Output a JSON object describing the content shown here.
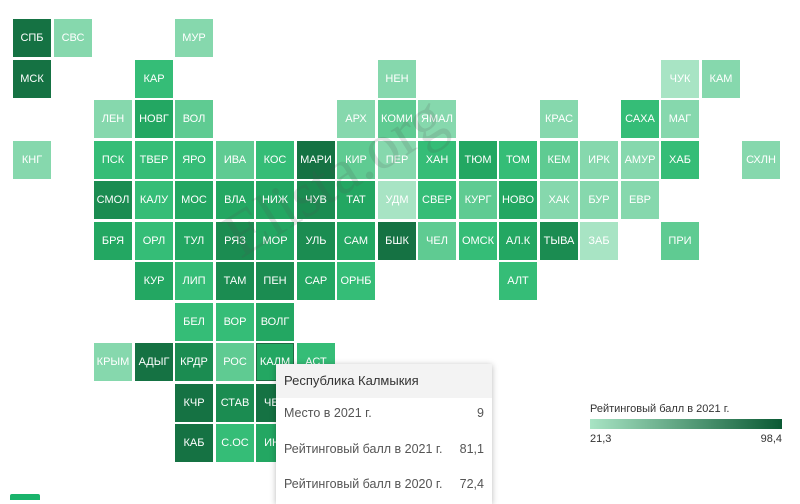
{
  "chart_data": {
    "type": "heatmap",
    "title": "",
    "colors": {
      "c1": "#a8e4c4",
      "c2": "#86d8ad",
      "c3": "#5fcb92",
      "c4": "#35bd77",
      "c5": "#23a762",
      "c6": "#1b8c51",
      "c7": "#157243",
      "c8": "#0e5a34"
    },
    "tiles": [
      {
        "label": "СПБ",
        "col": 0,
        "row": 0,
        "c": "c7"
      },
      {
        "label": "СВС",
        "col": 1,
        "row": 0,
        "c": "c2"
      },
      {
        "label": "МУР",
        "col": 4,
        "row": 0,
        "c": "c2"
      },
      {
        "label": "МСК",
        "col": 0,
        "row": 1,
        "c": "c7"
      },
      {
        "label": "КАР",
        "col": 3,
        "row": 1,
        "c": "c4"
      },
      {
        "label": "НЕН",
        "col": 9,
        "row": 1,
        "c": "c2"
      },
      {
        "label": "ЧУК",
        "col": 16,
        "row": 1,
        "c": "c1"
      },
      {
        "label": "КАМ",
        "col": 17,
        "row": 1,
        "c": "c2"
      },
      {
        "label": "ЛЕН",
        "col": 2,
        "row": 2,
        "c": "c2"
      },
      {
        "label": "НОВГ",
        "col": 3,
        "row": 2,
        "c": "c5"
      },
      {
        "label": "ВОЛ",
        "col": 4,
        "row": 2,
        "c": "c3"
      },
      {
        "label": "АРХ",
        "col": 8,
        "row": 2,
        "c": "c2"
      },
      {
        "label": "КОМИ",
        "col": 9,
        "row": 2,
        "c": "c3"
      },
      {
        "label": "ЯМАЛ",
        "col": 10,
        "row": 2,
        "c": "c2"
      },
      {
        "label": "КРАС",
        "col": 13,
        "row": 2,
        "c": "c2"
      },
      {
        "label": "САХА",
        "col": 15,
        "row": 2,
        "c": "c4"
      },
      {
        "label": "МАГ",
        "col": 16,
        "row": 2,
        "c": "c2"
      },
      {
        "label": "КНГ",
        "col": 0,
        "row": 3,
        "c": "c2"
      },
      {
        "label": "ПСК",
        "col": 2,
        "row": 3,
        "c": "c4"
      },
      {
        "label": "ТВЕР",
        "col": 3,
        "row": 3,
        "c": "c4"
      },
      {
        "label": "ЯРО",
        "col": 4,
        "row": 3,
        "c": "c4"
      },
      {
        "label": "ИВА",
        "col": 5,
        "row": 3,
        "c": "c3"
      },
      {
        "label": "КОС",
        "col": 6,
        "row": 3,
        "c": "c4"
      },
      {
        "label": "МАРИ",
        "col": 7,
        "row": 3,
        "c": "c7"
      },
      {
        "label": "КИР",
        "col": 8,
        "row": 3,
        "c": "c3"
      },
      {
        "label": "ПЕР",
        "col": 9,
        "row": 3,
        "c": "c2"
      },
      {
        "label": "ХАН",
        "col": 10,
        "row": 3,
        "c": "c4"
      },
      {
        "label": "ТЮМ",
        "col": 11,
        "row": 3,
        "c": "c5"
      },
      {
        "label": "ТОМ",
        "col": 12,
        "row": 3,
        "c": "c4"
      },
      {
        "label": "КЕМ",
        "col": 13,
        "row": 3,
        "c": "c3"
      },
      {
        "label": "ИРК",
        "col": 14,
        "row": 3,
        "c": "c2"
      },
      {
        "label": "АМУР",
        "col": 15,
        "row": 3,
        "c": "c2"
      },
      {
        "label": "ХАБ",
        "col": 16,
        "row": 3,
        "c": "c4"
      },
      {
        "label": "СХЛН",
        "col": 18,
        "row": 3,
        "c": "c2"
      },
      {
        "label": "СМОЛ",
        "col": 2,
        "row": 4,
        "c": "c6"
      },
      {
        "label": "КАЛУ",
        "col": 3,
        "row": 4,
        "c": "c4"
      },
      {
        "label": "МОС",
        "col": 4,
        "row": 4,
        "c": "c5"
      },
      {
        "label": "ВЛА",
        "col": 5,
        "row": 4,
        "c": "c5"
      },
      {
        "label": "НИЖ",
        "col": 6,
        "row": 4,
        "c": "c5"
      },
      {
        "label": "ЧУВ",
        "col": 7,
        "row": 4,
        "c": "c6"
      },
      {
        "label": "ТАТ",
        "col": 8,
        "row": 4,
        "c": "c5"
      },
      {
        "label": "УДМ",
        "col": 9,
        "row": 4,
        "c": "c1"
      },
      {
        "label": "СВЕР",
        "col": 10,
        "row": 4,
        "c": "c4"
      },
      {
        "label": "КУРГ",
        "col": 11,
        "row": 4,
        "c": "c3"
      },
      {
        "label": "НОВО",
        "col": 12,
        "row": 4,
        "c": "c5"
      },
      {
        "label": "ХАК",
        "col": 13,
        "row": 4,
        "c": "c2"
      },
      {
        "label": "БУР",
        "col": 14,
        "row": 4,
        "c": "c2"
      },
      {
        "label": "ЕВР",
        "col": 15,
        "row": 4,
        "c": "c2"
      },
      {
        "label": "БРЯ",
        "col": 2,
        "row": 5,
        "c": "c5"
      },
      {
        "label": "ОРЛ",
        "col": 3,
        "row": 5,
        "c": "c4"
      },
      {
        "label": "ТУЛ",
        "col": 4,
        "row": 5,
        "c": "c5"
      },
      {
        "label": "РЯЗ",
        "col": 5,
        "row": 5,
        "c": "c6"
      },
      {
        "label": "МОР",
        "col": 6,
        "row": 5,
        "c": "c5"
      },
      {
        "label": "УЛЬ",
        "col": 7,
        "row": 5,
        "c": "c6"
      },
      {
        "label": "САМ",
        "col": 8,
        "row": 5,
        "c": "c5"
      },
      {
        "label": "БШК",
        "col": 9,
        "row": 5,
        "c": "c7"
      },
      {
        "label": "ЧЕЛ",
        "col": 10,
        "row": 5,
        "c": "c3"
      },
      {
        "label": "ОМСК",
        "col": 11,
        "row": 5,
        "c": "c4"
      },
      {
        "label": "АЛ.К",
        "col": 12,
        "row": 5,
        "c": "c5"
      },
      {
        "label": "ТЫВА",
        "col": 13,
        "row": 5,
        "c": "c6"
      },
      {
        "label": "ЗАБ",
        "col": 14,
        "row": 5,
        "c": "c1"
      },
      {
        "label": "ПРИ",
        "col": 16,
        "row": 5,
        "c": "c3"
      },
      {
        "label": "КУР",
        "col": 3,
        "row": 6,
        "c": "c5"
      },
      {
        "label": "ЛИП",
        "col": 4,
        "row": 6,
        "c": "c4"
      },
      {
        "label": "ТАМ",
        "col": 5,
        "row": 6,
        "c": "c6"
      },
      {
        "label": "ПЕН",
        "col": 6,
        "row": 6,
        "c": "c6"
      },
      {
        "label": "САР",
        "col": 7,
        "row": 6,
        "c": "c5"
      },
      {
        "label": "ОРНБ",
        "col": 8,
        "row": 6,
        "c": "c4"
      },
      {
        "label": "АЛТ",
        "col": 12,
        "row": 6,
        "c": "c4"
      },
      {
        "label": "БЕЛ",
        "col": 4,
        "row": 7,
        "c": "c4"
      },
      {
        "label": "ВОР",
        "col": 5,
        "row": 7,
        "c": "c4"
      },
      {
        "label": "ВОЛГ",
        "col": 6,
        "row": 7,
        "c": "c5"
      },
      {
        "label": "КРЫМ",
        "col": 2,
        "row": 8,
        "c": "c2"
      },
      {
        "label": "АДЫГ",
        "col": 3,
        "row": 8,
        "c": "c7"
      },
      {
        "label": "КРДР",
        "col": 4,
        "row": 8,
        "c": "c6"
      },
      {
        "label": "РОС",
        "col": 5,
        "row": 8,
        "c": "c3"
      },
      {
        "label": "КАЛМ",
        "col": 6,
        "row": 8,
        "c": "c5",
        "selected": true
      },
      {
        "label": "АСТ",
        "col": 7,
        "row": 8,
        "c": "c4"
      },
      {
        "label": "КЧР",
        "col": 4,
        "row": 9,
        "c": "c7"
      },
      {
        "label": "СТАВ",
        "col": 5,
        "row": 9,
        "c": "c6"
      },
      {
        "label": "ЧЕЧ",
        "col": 6,
        "row": 9,
        "c": "c7"
      },
      {
        "label": "КАБ",
        "col": 4,
        "row": 10,
        "c": "c7"
      },
      {
        "label": "С.ОС",
        "col": 5,
        "row": 10,
        "c": "c4"
      },
      {
        "label": "ИНГ",
        "col": 6,
        "row": 10,
        "c": "c5"
      }
    ],
    "legend": {
      "title": "Рейтинговый балл в 2021 г.",
      "min": "21,3",
      "max": "98,4",
      "min_color": "#a8e4c4",
      "max_color": "#0b5a34"
    }
  },
  "tooltip": {
    "region": "Республика Калмыкия",
    "rows": [
      {
        "label": "Место в 2021 г.",
        "value": "9"
      },
      {
        "label": "Рейтинговый балл в 2021 г.",
        "value": "81,1"
      },
      {
        "label": "Рейтинговый балл в 2020 г.",
        "value": "72,4"
      }
    ]
  },
  "watermark": "Elista.org"
}
